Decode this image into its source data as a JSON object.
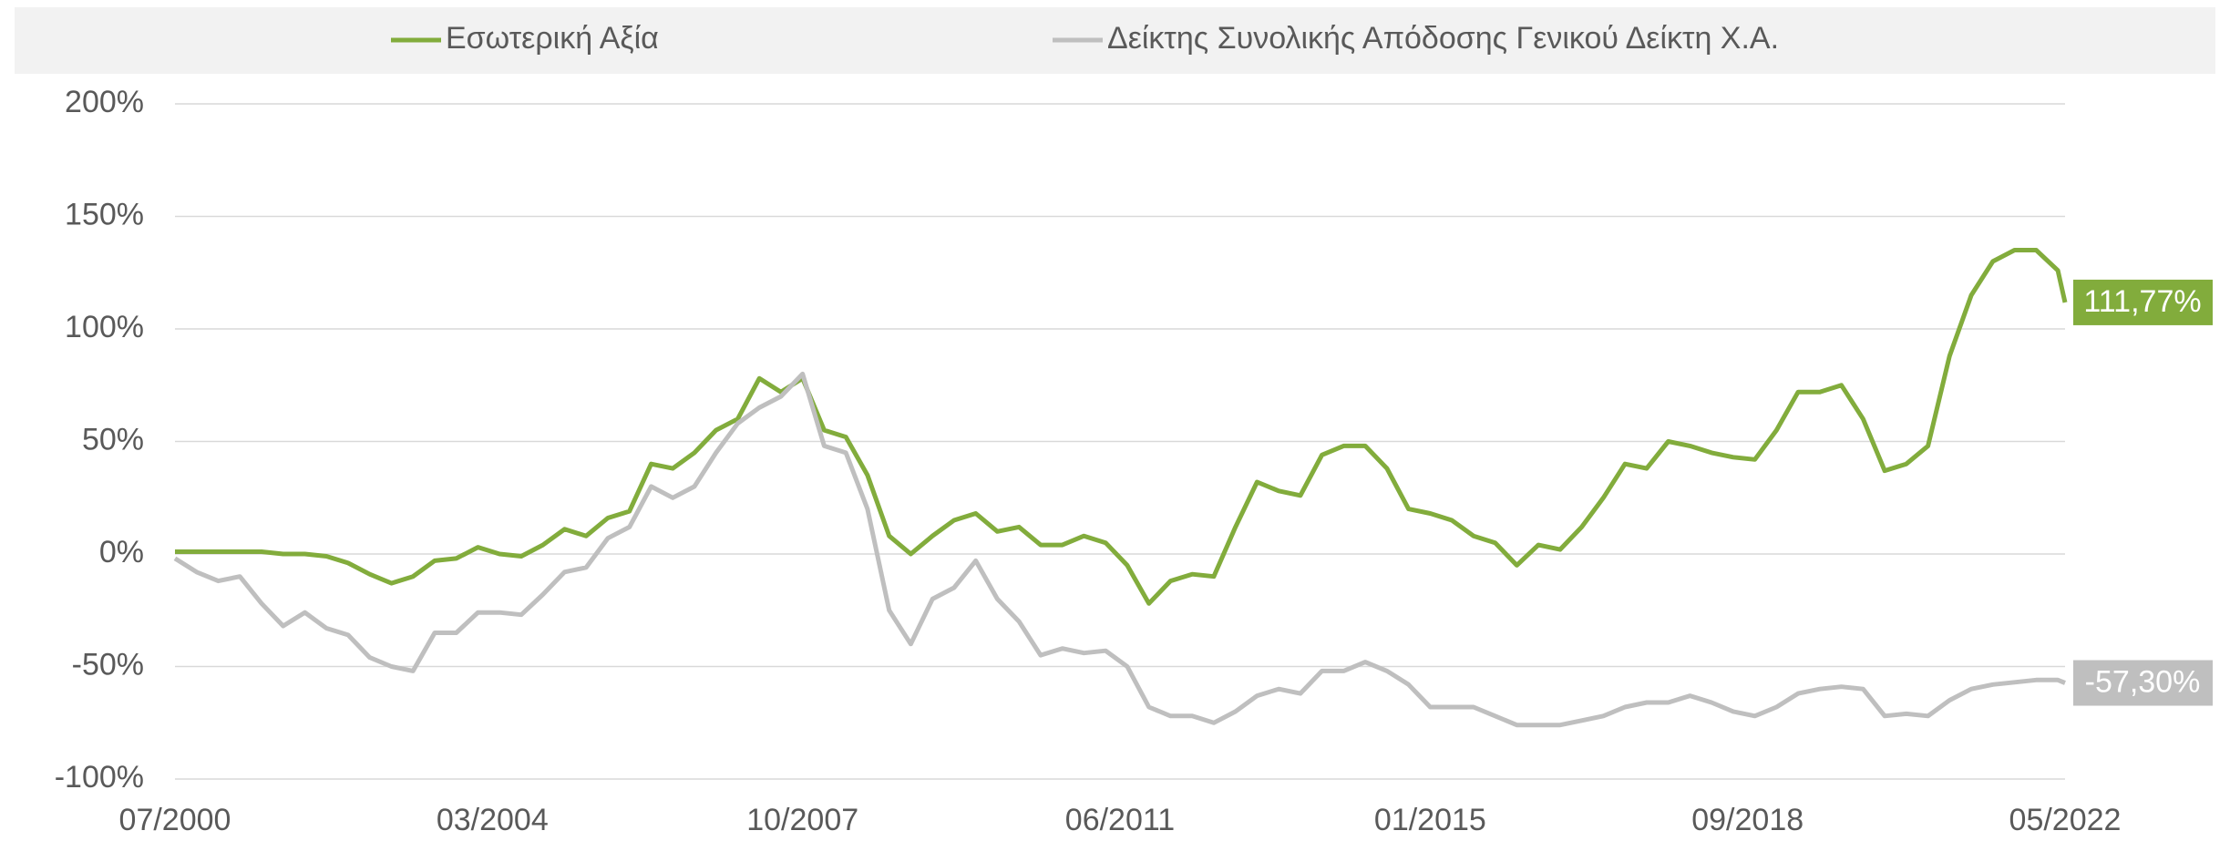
{
  "chart_data": {
    "type": "line",
    "x": [
      "07/2000",
      "10/2000",
      "01/2001",
      "04/2001",
      "07/2001",
      "10/2001",
      "01/2002",
      "04/2002",
      "07/2002",
      "10/2002",
      "01/2003",
      "04/2003",
      "07/2003",
      "10/2003",
      "01/2004",
      "04/2004",
      "07/2004",
      "10/2004",
      "01/2005",
      "04/2005",
      "07/2005",
      "10/2005",
      "01/2006",
      "04/2006",
      "07/2006",
      "10/2006",
      "01/2007",
      "04/2007",
      "07/2007",
      "10/2007",
      "01/2008",
      "04/2008",
      "07/2008",
      "10/2008",
      "01/2009",
      "04/2009",
      "07/2009",
      "10/2009",
      "01/2010",
      "04/2010",
      "07/2010",
      "10/2010",
      "01/2011",
      "04/2011",
      "07/2011",
      "10/2011",
      "01/2012",
      "04/2012",
      "07/2012",
      "10/2012",
      "01/2013",
      "04/2013",
      "07/2013",
      "10/2013",
      "01/2014",
      "04/2014",
      "07/2014",
      "10/2014",
      "01/2015",
      "04/2015",
      "07/2015",
      "10/2015",
      "01/2016",
      "04/2016",
      "07/2016",
      "10/2016",
      "01/2017",
      "04/2017",
      "07/2017",
      "10/2017",
      "01/2018",
      "04/2018",
      "07/2018",
      "10/2018",
      "01/2019",
      "04/2019",
      "07/2019",
      "10/2019",
      "01/2020",
      "04/2020",
      "07/2020",
      "10/2020",
      "01/2021",
      "04/2021",
      "07/2021",
      "10/2021",
      "01/2022",
      "04/2022",
      "05/2022"
    ],
    "series": [
      {
        "name": "Εσωτερική Αξία",
        "color": "#82ac3c",
        "end_label": "111,77%",
        "values": [
          1,
          1,
          1,
          1,
          1,
          0,
          0,
          -1,
          -4,
          -9,
          -13,
          -10,
          -3,
          -2,
          3,
          0,
          -1,
          4,
          11,
          8,
          16,
          19,
          40,
          38,
          45,
          55,
          60,
          78,
          72,
          78,
          55,
          52,
          35,
          8,
          0,
          8,
          15,
          18,
          10,
          12,
          4,
          4,
          8,
          5,
          -5,
          -22,
          -12,
          -9,
          -10,
          12,
          32,
          28,
          26,
          44,
          48,
          48,
          38,
          20,
          18,
          15,
          8,
          5,
          -5,
          4,
          2,
          12,
          25,
          40,
          38,
          50,
          48,
          45,
          43,
          42,
          55,
          72,
          72,
          75,
          60,
          37,
          40,
          48,
          88,
          115,
          130,
          135,
          135,
          126,
          111.77
        ]
      },
      {
        "name": "Δείκτης Συνολικής Απόδοσης Γενικού Δείκτη Χ.Α.",
        "color": "#bfbfbf",
        "end_label": "-57,30%",
        "values": [
          -2,
          -8,
          -12,
          -10,
          -22,
          -32,
          -26,
          -33,
          -36,
          -46,
          -50,
          -52,
          -35,
          -35,
          -26,
          -26,
          -27,
          -18,
          -8,
          -6,
          7,
          12,
          30,
          25,
          30,
          45,
          58,
          65,
          70,
          80,
          48,
          45,
          20,
          -25,
          -40,
          -20,
          -15,
          -3,
          -20,
          -30,
          -45,
          -42,
          -44,
          -43,
          -50,
          -68,
          -72,
          -72,
          -75,
          -70,
          -63,
          -60,
          -62,
          -52,
          -52,
          -48,
          -52,
          -58,
          -68,
          -68,
          -68,
          -72,
          -76,
          -76,
          -76,
          -74,
          -72,
          -68,
          -66,
          -66,
          -63,
          -66,
          -70,
          -72,
          -68,
          -62,
          -60,
          -59,
          -60,
          -72,
          -71,
          -72,
          -65,
          -60,
          -58,
          -57,
          -56,
          -56,
          -57.3
        ]
      }
    ],
    "xlim": [
      "07/2000",
      "05/2022"
    ],
    "xticks": [
      "07/2000",
      "03/2004",
      "10/2007",
      "06/2011",
      "01/2015",
      "09/2018",
      "05/2022"
    ],
    "ylim": [
      -100,
      200
    ],
    "yticks": [
      {
        "value": -100,
        "label": "-100%"
      },
      {
        "value": -50,
        "label": "-50%"
      },
      {
        "value": 0,
        "label": "0%"
      },
      {
        "value": 50,
        "label": "50%"
      },
      {
        "value": 100,
        "label": "100%"
      },
      {
        "value": 150,
        "label": "150%"
      },
      {
        "value": 200,
        "label": "200%"
      }
    ],
    "grid": true,
    "legend": "top"
  }
}
